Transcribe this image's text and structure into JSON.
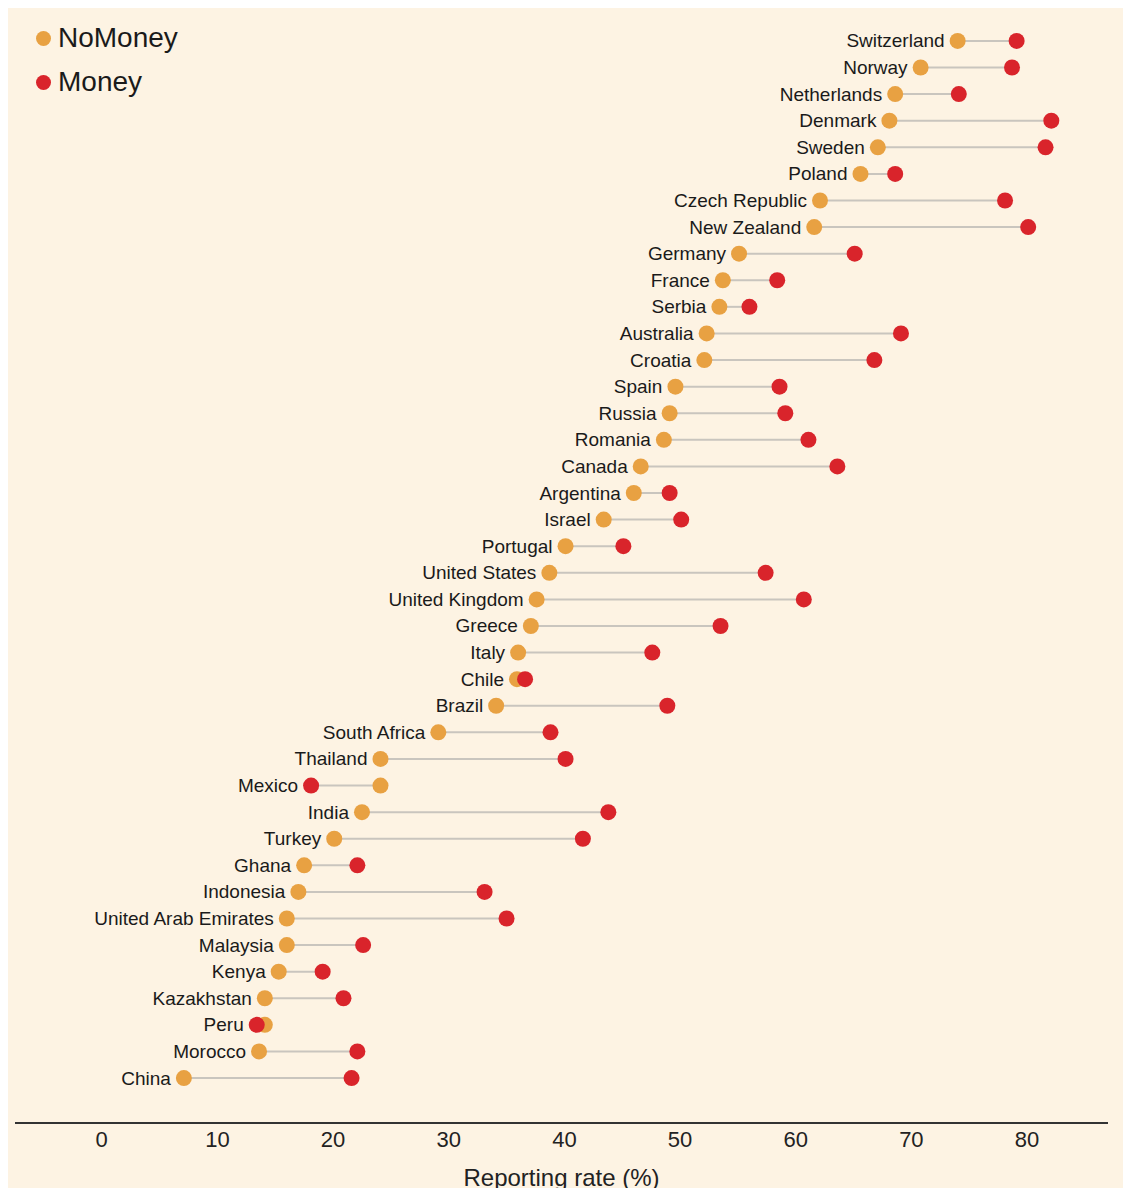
{
  "chart_data": {
    "type": "dumbbell",
    "orientation": "horizontal",
    "xlabel": "Reporting rate (%)",
    "xlim": [
      -7.5,
      87
    ],
    "xticks": [
      0,
      10,
      20,
      30,
      40,
      50,
      60,
      70,
      80
    ],
    "grid": false,
    "legend": "top left",
    "tick_labels": "x",
    "marker": "circle",
    "categories": [
      "Switzerland",
      "Norway",
      "Netherlands",
      "Denmark",
      "Sweden",
      "Poland",
      "Czech Republic",
      "New Zealand",
      "Germany",
      "France",
      "Serbia",
      "Australia",
      "Croatia",
      "Spain",
      "Russia",
      "Romania",
      "Canada",
      "Argentina",
      "Israel",
      "Portugal",
      "United States",
      "United Kingdom",
      "Greece",
      "Italy",
      "Chile",
      "Brazil",
      "South Africa",
      "Thailand",
      "Mexico",
      "India",
      "Turkey",
      "Ghana",
      "Indonesia",
      "United Arab Emirates",
      "Malaysia",
      "Kenya",
      "Kazakhstan",
      "Peru",
      "Morocco",
      "China"
    ],
    "series": [
      {
        "name": "NoMoney",
        "color": "#e8a142",
        "values": [
          74.0,
          70.8,
          68.6,
          68.1,
          67.1,
          65.6,
          62.1,
          61.6,
          55.1,
          53.7,
          53.4,
          52.3,
          52.1,
          49.6,
          49.1,
          48.6,
          46.6,
          46.0,
          43.4,
          40.1,
          38.7,
          37.6,
          37.1,
          36.0,
          35.9,
          34.1,
          29.1,
          24.1,
          24.1,
          22.5,
          20.1,
          17.5,
          17.0,
          16.0,
          16.0,
          15.3,
          14.1,
          14.1,
          13.6,
          7.1
        ]
      },
      {
        "name": "Money",
        "color": "#d9242b",
        "values": [
          79.1,
          78.7,
          74.1,
          82.1,
          81.6,
          68.6,
          78.1,
          80.1,
          65.1,
          58.4,
          56.0,
          69.1,
          66.8,
          58.6,
          59.1,
          61.1,
          63.6,
          49.1,
          50.1,
          45.1,
          57.4,
          60.7,
          53.5,
          47.6,
          36.6,
          48.9,
          38.8,
          40.1,
          18.1,
          43.8,
          41.6,
          22.1,
          33.1,
          35.0,
          22.6,
          19.1,
          20.9,
          13.4,
          22.1,
          21.6
        ]
      }
    ]
  }
}
